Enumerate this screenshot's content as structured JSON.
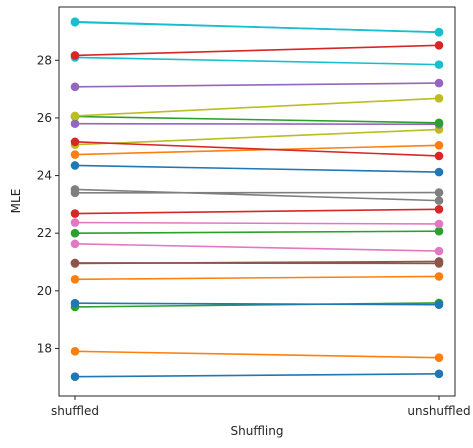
{
  "chart_data": {
    "type": "line",
    "xlabel": "Shuffling",
    "ylabel": "MLE",
    "categories": [
      "shuffled",
      "unshuffled"
    ],
    "ylim": [
      16.35,
      29.85
    ],
    "yticks": [
      18,
      20,
      22,
      24,
      26,
      28
    ],
    "grid": false,
    "series": [
      {
        "color": "#1f77b4",
        "values": [
          17.02,
          17.12
        ]
      },
      {
        "color": "#ff7f0e",
        "values": [
          17.9,
          17.68
        ]
      },
      {
        "color": "#2ca02c",
        "values": [
          19.44,
          19.58
        ]
      },
      {
        "color": "#1f77b4",
        "values": [
          19.57,
          19.52
        ]
      },
      {
        "color": "#ff7f0e",
        "values": [
          20.4,
          20.5
        ]
      },
      {
        "color": "#8c564b",
        "values": [
          20.95,
          21.02
        ]
      },
      {
        "color": "#8c564b",
        "values": [
          20.97,
          20.95
        ]
      },
      {
        "color": "#e377c2",
        "values": [
          21.63,
          21.38
        ]
      },
      {
        "color": "#2ca02c",
        "values": [
          22.0,
          22.07
        ]
      },
      {
        "color": "#e377c2",
        "values": [
          22.37,
          22.32
        ]
      },
      {
        "color": "#d62728",
        "values": [
          22.68,
          22.83
        ]
      },
      {
        "color": "#7f7f7f",
        "values": [
          23.4,
          23.41
        ]
      },
      {
        "color": "#7f7f7f",
        "values": [
          23.52,
          23.13
        ]
      },
      {
        "color": "#1f77b4",
        "values": [
          24.35,
          24.12
        ]
      },
      {
        "color": "#ff7f0e",
        "values": [
          24.73,
          25.05
        ]
      },
      {
        "color": "#bcbd22",
        "values": [
          25.07,
          25.6
        ]
      },
      {
        "color": "#d62728",
        "values": [
          25.17,
          24.68
        ]
      },
      {
        "color": "#9467bd",
        "values": [
          25.8,
          25.78
        ]
      },
      {
        "color": "#2ca02c",
        "values": [
          26.05,
          25.83
        ]
      },
      {
        "color": "#bcbd22",
        "values": [
          26.07,
          26.68
        ]
      },
      {
        "color": "#9467bd",
        "values": [
          27.08,
          27.21
        ]
      },
      {
        "color": "#17becf",
        "values": [
          28.1,
          27.85
        ]
      },
      {
        "color": "#d62728",
        "values": [
          28.17,
          28.52
        ]
      },
      {
        "color": "#17becf",
        "values": [
          29.34,
          28.97
        ]
      },
      {
        "color": "#17becf",
        "values": [
          29.32,
          28.98
        ]
      }
    ]
  }
}
